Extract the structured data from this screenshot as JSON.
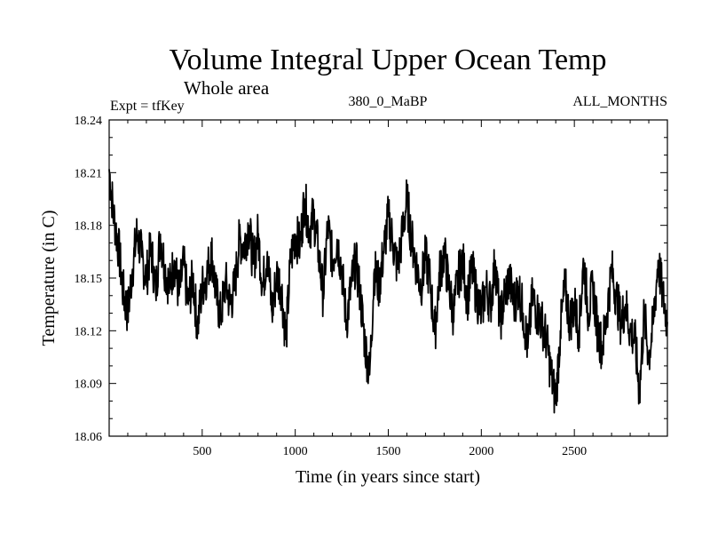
{
  "chart_data": {
    "type": "line",
    "title": "Volume Integral Upper Ocean Temp",
    "subtitle": "Whole area",
    "experiment": "Expt = tfKey",
    "period": "380_0_MaBP",
    "season": "ALL_MONTHS",
    "xlabel": "Time (in years since start)",
    "ylabel": "Temperature (in C)",
    "xlim": [
      0,
      3000
    ],
    "ylim": [
      18.06,
      18.24
    ],
    "x_ticks": [
      500,
      1000,
      1500,
      2000,
      2500
    ],
    "y_ticks": [
      18.06,
      18.09,
      18.12,
      18.15,
      18.18,
      18.21,
      18.24
    ],
    "y_tick_labels": [
      "18.06",
      "18.09",
      "18.12",
      "18.15",
      "18.18",
      "18.21",
      "18.24"
    ],
    "grid": false,
    "line_color": "#000000",
    "series": [
      {
        "x": [
          0,
          25,
          50,
          75,
          100,
          125,
          150,
          175,
          200,
          225,
          250,
          275,
          300,
          325,
          350,
          375,
          400,
          425,
          450,
          475,
          500,
          525,
          550,
          575,
          600,
          625,
          650,
          675,
          700,
          725,
          750,
          775,
          800,
          825,
          850,
          875,
          900,
          925,
          950,
          975,
          1000,
          1025,
          1050,
          1075,
          1100,
          1125,
          1150,
          1175,
          1200,
          1225,
          1250,
          1275,
          1300,
          1325,
          1350,
          1375,
          1400,
          1425,
          1450,
          1475,
          1500,
          1525,
          1550,
          1575,
          1600,
          1625,
          1650,
          1675,
          1700,
          1725,
          1750,
          1775,
          1800,
          1825,
          1850,
          1875,
          1900,
          1925,
          1950,
          1975,
          2000,
          2025,
          2050,
          2075,
          2100,
          2125,
          2150,
          2175,
          2200,
          2225,
          2250,
          2275,
          2300,
          2325,
          2350,
          2375,
          2400,
          2425,
          2450,
          2475,
          2500,
          2525,
          2550,
          2575,
          2600,
          2625,
          2650,
          2675,
          2700,
          2725,
          2750,
          2775,
          2800,
          2825,
          2850,
          2875,
          2900,
          2925,
          2950,
          2975,
          3000
        ],
        "values": [
          18.212,
          18.185,
          18.168,
          18.142,
          18.13,
          18.155,
          18.176,
          18.162,
          18.15,
          18.168,
          18.142,
          18.175,
          18.155,
          18.145,
          18.16,
          18.14,
          18.158,
          18.135,
          18.15,
          18.122,
          18.145,
          18.152,
          18.165,
          18.14,
          18.128,
          18.148,
          18.135,
          18.145,
          18.172,
          18.168,
          18.18,
          18.158,
          18.175,
          18.145,
          18.165,
          18.13,
          18.152,
          18.145,
          18.115,
          18.16,
          18.175,
          18.168,
          18.195,
          18.178,
          18.185,
          18.165,
          18.14,
          18.18,
          18.16,
          18.172,
          18.155,
          18.125,
          18.145,
          18.16,
          18.14,
          18.112,
          18.095,
          18.155,
          18.145,
          18.165,
          18.185,
          18.17,
          18.155,
          18.175,
          18.195,
          18.172,
          18.158,
          18.145,
          18.162,
          18.148,
          18.118,
          18.152,
          18.165,
          18.145,
          18.13,
          18.15,
          18.16,
          18.138,
          18.155,
          18.14,
          18.13,
          18.145,
          18.135,
          18.16,
          18.125,
          18.14,
          18.15,
          18.135,
          18.145,
          18.13,
          18.11,
          18.14,
          18.13,
          18.125,
          18.115,
          18.095,
          18.08,
          18.12,
          18.145,
          18.125,
          18.135,
          18.12,
          18.16,
          18.13,
          18.145,
          18.12,
          18.11,
          18.13,
          18.155,
          18.14,
          18.125,
          18.135,
          18.12,
          18.115,
          18.085,
          18.13,
          18.105,
          18.125,
          18.16,
          18.14,
          18.125
        ]
      }
    ]
  }
}
